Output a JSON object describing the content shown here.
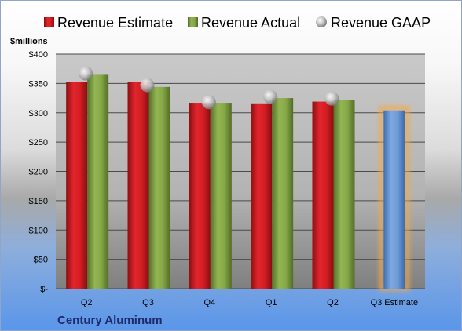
{
  "chart_data": {
    "type": "bar",
    "unit_label": "$millions",
    "company": "Century Aluminum",
    "categories": [
      "Q2",
      "Q3",
      "Q4",
      "Q1",
      "Q2",
      "Q3 Estimate"
    ],
    "series": [
      {
        "name": "Revenue Estimate",
        "kind": "bar",
        "color": "#c0161d",
        "values": [
          353,
          352,
          317,
          316,
          319,
          null
        ]
      },
      {
        "name": "Revenue Actual",
        "kind": "bar",
        "color": "#7a9a3c",
        "values": [
          366,
          344,
          317,
          325,
          322,
          null
        ]
      },
      {
        "name": "Revenue GAAP",
        "kind": "marker",
        "color": "#b8b8b8",
        "values": [
          367,
          347,
          318,
          327,
          324,
          null
        ]
      },
      {
        "name": "Q3 Estimate",
        "kind": "bar",
        "color": "#5b8fd4",
        "values": [
          null,
          null,
          null,
          null,
          null,
          304
        ],
        "highlight": "#f4a84a"
      }
    ],
    "ylim": [
      0,
      400
    ],
    "yticks": [
      0,
      50,
      100,
      150,
      200,
      250,
      300,
      350,
      400
    ],
    "ytick_labels": [
      "$-",
      "$50",
      "$100",
      "$150",
      "$200",
      "$250",
      "$300",
      "$350",
      "$400"
    ],
    "grid": true,
    "legend_position": "top"
  }
}
